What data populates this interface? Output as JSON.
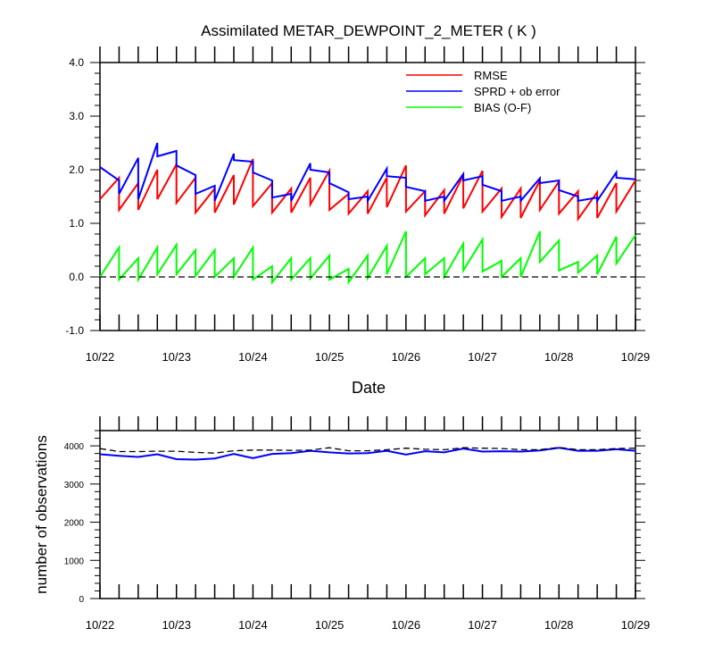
{
  "chart_data": [
    {
      "type": "line",
      "title": "Assimilated METAR_DEWPOINT_2_METER ( K )",
      "xlabel": "Date",
      "ylabel": "",
      "ylim": [
        -1.0,
        4.0
      ],
      "yticks": [
        "-1.0",
        "0.0",
        "1.0",
        "2.0",
        "3.0",
        "4.0"
      ],
      "xlim": [
        0,
        7
      ],
      "xticks": [
        "10/22",
        "10/23",
        "10/24",
        "10/25",
        "10/26",
        "10/27",
        "10/28",
        "10/29"
      ],
      "legend": [
        "RMSE",
        "SPRD + ob error",
        "BIAS (O-F)"
      ],
      "series": [
        {
          "name": "RMSE",
          "color": "#ff0000",
          "x": [
            0.0,
            0.25,
            0.25,
            0.5,
            0.5,
            0.75,
            0.75,
            1.0,
            1.0,
            1.25,
            1.25,
            1.5,
            1.5,
            1.75,
            1.75,
            2.0,
            2.0,
            2.25,
            2.25,
            2.5,
            2.5,
            2.75,
            2.75,
            3.0,
            3.0,
            3.25,
            3.25,
            3.5,
            3.5,
            3.75,
            3.75,
            4.0,
            4.0,
            4.25,
            4.25,
            4.5,
            4.5,
            4.75,
            4.75,
            5.0,
            5.0,
            5.25,
            5.25,
            5.5,
            5.5,
            5.75,
            5.75,
            6.0,
            6.0,
            6.25,
            6.25,
            6.5,
            6.5,
            6.75,
            6.75,
            7.0
          ],
          "y": [
            1.45,
            1.85,
            1.25,
            1.75,
            1.25,
            2.0,
            1.45,
            2.1,
            1.38,
            1.85,
            1.2,
            1.65,
            1.2,
            1.9,
            1.35,
            2.2,
            1.32,
            1.75,
            1.2,
            1.65,
            1.2,
            1.85,
            1.35,
            1.98,
            1.25,
            1.55,
            1.18,
            1.6,
            1.18,
            1.85,
            1.3,
            2.08,
            1.22,
            1.6,
            1.15,
            1.62,
            1.18,
            1.9,
            1.28,
            1.98,
            1.22,
            1.65,
            1.12,
            1.65,
            1.1,
            1.8,
            1.25,
            1.78,
            1.18,
            1.6,
            1.08,
            1.58,
            1.1,
            1.75,
            1.22,
            1.8
          ]
        },
        {
          "name": "SPRD + ob error",
          "color": "#0000ff",
          "x": [
            0.0,
            0.25,
            0.25,
            0.5,
            0.5,
            0.75,
            0.75,
            1.0,
            1.0,
            1.25,
            1.25,
            1.5,
            1.5,
            1.75,
            1.75,
            2.0,
            2.0,
            2.25,
            2.25,
            2.5,
            2.5,
            2.75,
            2.75,
            3.0,
            3.0,
            3.25,
            3.25,
            3.5,
            3.5,
            3.75,
            3.75,
            4.0,
            4.0,
            4.25,
            4.25,
            4.5,
            4.5,
            4.75,
            4.75,
            5.0,
            5.0,
            5.25,
            5.25,
            5.5,
            5.5,
            5.75,
            5.75,
            6.0,
            6.0,
            6.25,
            6.25,
            6.5,
            6.5,
            6.75,
            6.75,
            7.0
          ],
          "y": [
            2.05,
            1.8,
            1.55,
            2.22,
            1.45,
            2.5,
            2.25,
            2.35,
            2.08,
            1.9,
            1.55,
            1.7,
            1.42,
            2.3,
            2.18,
            2.15,
            1.95,
            1.8,
            1.48,
            1.55,
            1.42,
            2.12,
            2.0,
            1.95,
            1.75,
            1.58,
            1.45,
            1.5,
            1.42,
            2.02,
            1.88,
            1.85,
            1.68,
            1.6,
            1.42,
            1.5,
            1.42,
            1.92,
            1.8,
            1.88,
            1.72,
            1.6,
            1.42,
            1.5,
            1.42,
            1.84,
            1.75,
            1.8,
            1.62,
            1.5,
            1.42,
            1.48,
            1.42,
            1.95,
            1.85,
            1.82
          ]
        },
        {
          "name": "BIAS (O-F)",
          "color": "#00ff00",
          "x": [
            0.0,
            0.25,
            0.25,
            0.5,
            0.5,
            0.75,
            0.75,
            1.0,
            1.0,
            1.25,
            1.25,
            1.5,
            1.5,
            1.75,
            1.75,
            2.0,
            2.0,
            2.25,
            2.25,
            2.5,
            2.5,
            2.75,
            2.75,
            3.0,
            3.0,
            3.25,
            3.25,
            3.5,
            3.5,
            3.75,
            3.75,
            4.0,
            4.0,
            4.25,
            4.25,
            4.5,
            4.5,
            4.75,
            4.75,
            5.0,
            5.0,
            5.25,
            5.25,
            5.5,
            5.5,
            5.75,
            5.75,
            6.0,
            6.0,
            6.25,
            6.25,
            6.5,
            6.5,
            6.75,
            6.75,
            7.0
          ],
          "y": [
            0.0,
            0.55,
            -0.05,
            0.35,
            -0.05,
            0.55,
            0.05,
            0.6,
            0.05,
            0.5,
            0.02,
            0.5,
            0.0,
            0.35,
            0.0,
            0.55,
            -0.05,
            0.2,
            -0.1,
            0.35,
            -0.05,
            0.35,
            -0.03,
            0.4,
            -0.05,
            0.15,
            -0.1,
            0.4,
            -0.02,
            0.58,
            0.05,
            0.85,
            0.0,
            0.35,
            0.05,
            0.35,
            0.0,
            0.62,
            0.12,
            0.7,
            0.1,
            0.3,
            0.0,
            0.35,
            0.0,
            0.85,
            0.28,
            0.68,
            0.12,
            0.28,
            0.08,
            0.4,
            0.05,
            0.75,
            0.25,
            0.78
          ]
        },
        {
          "name": "zero line",
          "color": "#000000",
          "dashed": true,
          "x": [
            0.0,
            7.0
          ],
          "y": [
            0.0,
            0.0
          ]
        }
      ]
    },
    {
      "type": "line",
      "title": "",
      "xlabel": "",
      "ylabel": "number of observations",
      "ylim": [
        0,
        4400
      ],
      "yticks": [
        "0",
        "1000",
        "2000",
        "3000",
        "4000"
      ],
      "xlim": [
        0,
        7
      ],
      "xticks": [
        "10/22",
        "10/23",
        "10/24",
        "10/25",
        "10/26",
        "10/27",
        "10/28",
        "10/29"
      ],
      "series": [
        {
          "name": "observations used",
          "color": "#0000ff",
          "x": [
            0,
            0.25,
            0.5,
            0.75,
            1.0,
            1.25,
            1.5,
            1.75,
            2.0,
            2.25,
            2.5,
            2.75,
            3.0,
            3.25,
            3.5,
            3.75,
            4.0,
            4.25,
            4.5,
            4.75,
            5.0,
            5.25,
            5.5,
            5.75,
            6.0,
            6.25,
            6.5,
            6.75,
            7.0
          ],
          "y": [
            3780,
            3740,
            3710,
            3780,
            3650,
            3640,
            3670,
            3790,
            3680,
            3790,
            3810,
            3870,
            3830,
            3800,
            3810,
            3870,
            3770,
            3860,
            3830,
            3930,
            3850,
            3860,
            3850,
            3880,
            3950,
            3870,
            3870,
            3910,
            3870
          ]
        },
        {
          "name": "observations possible",
          "color": "#000000",
          "dashed": true,
          "x": [
            0,
            0.25,
            0.5,
            0.75,
            1.0,
            1.25,
            1.5,
            1.75,
            2.0,
            2.25,
            2.5,
            2.75,
            3.0,
            3.25,
            3.5,
            3.75,
            4.0,
            4.25,
            4.5,
            4.75,
            5.0,
            5.25,
            5.5,
            5.75,
            6.0,
            6.25,
            6.5,
            6.75,
            7.0
          ],
          "y": [
            3930,
            3850,
            3850,
            3860,
            3860,
            3830,
            3810,
            3870,
            3890,
            3890,
            3880,
            3890,
            3950,
            3870,
            3870,
            3900,
            3940,
            3910,
            3900,
            3950,
            3940,
            3930,
            3900,
            3900,
            3960,
            3900,
            3900,
            3930,
            3940
          ]
        }
      ]
    }
  ]
}
